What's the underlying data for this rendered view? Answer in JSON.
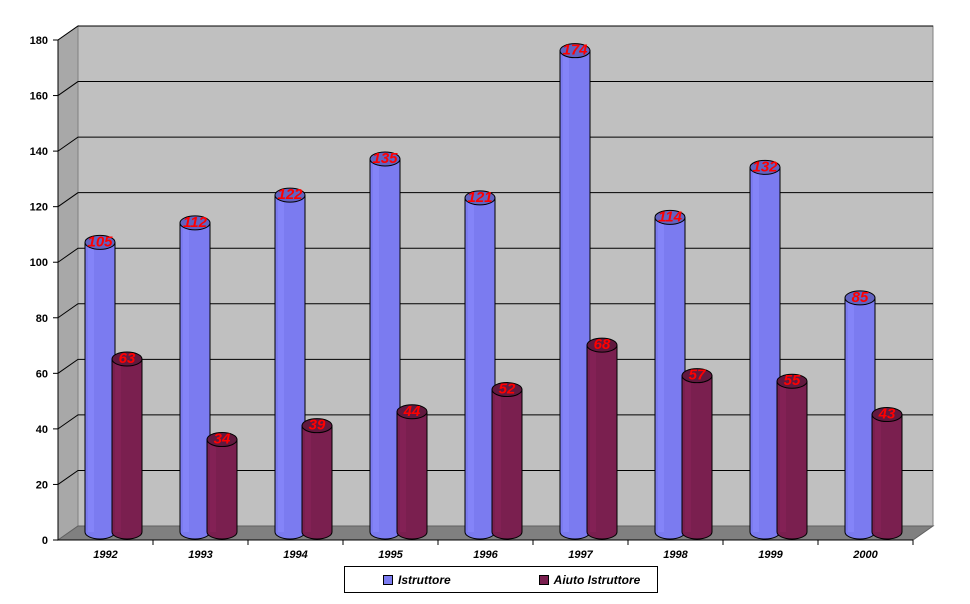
{
  "chart_data": {
    "type": "bar",
    "categories": [
      "1992",
      "1993",
      "1994",
      "1995",
      "1996",
      "1997",
      "1998",
      "1999",
      "2000"
    ],
    "series": [
      {
        "name": "Istruttore",
        "values": [
          105,
          112,
          122,
          135,
          121,
          174,
          114,
          132,
          85
        ],
        "color": "#7b7bf0"
      },
      {
        "name": "Aiuto Istruttore",
        "values": [
          63,
          34,
          39,
          44,
          52,
          68,
          57,
          55,
          43
        ],
        "color": "#7a1f4f"
      }
    ],
    "ylim": [
      0,
      180
    ],
    "yticks": [
      "0",
      "20",
      "40",
      "60",
      "80",
      "100",
      "120",
      "140",
      "160",
      "180"
    ],
    "grid": true,
    "legend": "bottom",
    "data_label_color": "#ff0000",
    "wall_color": "#c0c0c0",
    "floor_color": "#808080"
  }
}
